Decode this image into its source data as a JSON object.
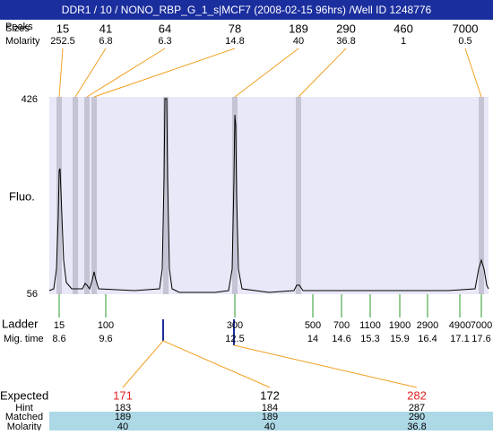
{
  "title": "DDR1 / 10 / NONO_RBP_G_1_s|MCF7 (2008-02-15 96hrs) /Well ID 1248776",
  "peaks": {
    "labels": [
      "Peaks",
      "Sizes",
      "Molarity"
    ],
    "sizes": [
      15,
      41,
      64,
      78,
      189,
      290,
      460,
      7000
    ],
    "molarity": [
      252.5,
      6.8,
      6.3,
      14.8,
      40,
      36.8,
      1,
      0.5
    ]
  },
  "y_axis": {
    "label": "Fluo.",
    "max": 426,
    "min": 56
  },
  "ladder": {
    "labels": [
      "Ladder",
      "Mig. time"
    ],
    "sizes": [
      15,
      100,
      300,
      500,
      700,
      1100,
      1900,
      2900,
      4900,
      7000
    ],
    "mig_times": [
      8.6,
      9.6,
      12.5,
      14,
      14.6,
      15.3,
      15.9,
      16.4,
      17.1,
      17.6
    ]
  },
  "expected": {
    "labels": [
      "Expected",
      "Hint",
      "Matched",
      "Molarity"
    ],
    "columns": [
      {
        "expected": 171,
        "hint": 183,
        "matched": 189,
        "molarity": 40
      },
      {
        "expected": 172,
        "hint": 184,
        "matched": 189,
        "molarity": 40
      },
      {
        "expected": 282,
        "hint": 287,
        "matched": 290,
        "molarity": 36.8
      }
    ]
  }
}
